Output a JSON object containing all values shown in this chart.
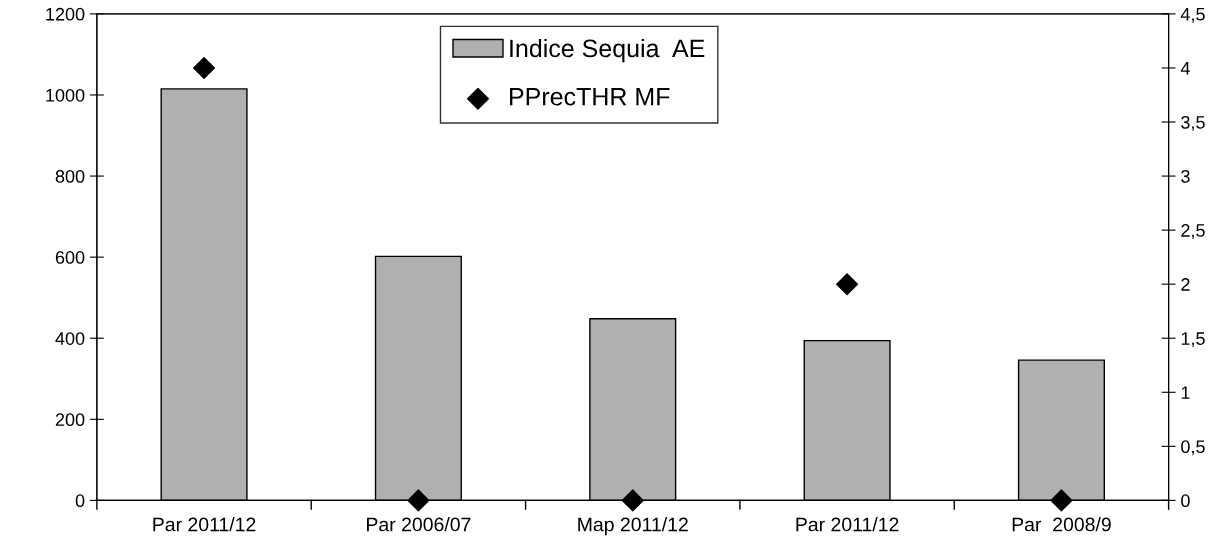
{
  "chart_data": {
    "type": "bar",
    "categories": [
      "Par 2011/12",
      "Par 2006/07",
      "Map 2011/12",
      "Par 2011/12",
      "Par  2008/9"
    ],
    "series": [
      {
        "name": "Indice Sequia  AE",
        "color": "#b0b0b0",
        "values": [
          1015,
          602,
          448,
          394,
          346
        ]
      },
      {
        "name": "PPrecTHR MF",
        "type": "scatter",
        "axis": "y2",
        "color": "#000000",
        "marker": "diamond",
        "values": [
          4,
          0,
          0,
          2,
          0
        ]
      }
    ],
    "ylim": [
      0,
      1200
    ],
    "yticks": [
      0,
      200,
      400,
      600,
      800,
      1000,
      1200
    ],
    "y2lim": [
      0,
      4.5
    ],
    "y2ticks": [
      0,
      {
        "value": 0.5,
        "label": "0,5"
      },
      1,
      {
        "value": 1.5,
        "label": "1,5"
      },
      2,
      {
        "value": 2.5,
        "label": "2,5"
      },
      3,
      {
        "value": 3.5,
        "label": "3,5"
      },
      4,
      {
        "value": 4.5,
        "label": "4,5"
      }
    ],
    "legend": "top",
    "grid": false
  }
}
